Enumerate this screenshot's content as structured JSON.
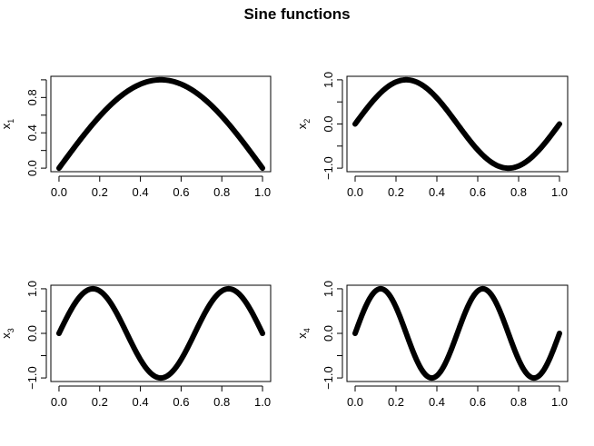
{
  "title": "Sine functions",
  "chart_data": [
    {
      "type": "line",
      "ylabel": "x",
      "ylabel_subscript": "1",
      "xlim": [
        0,
        1
      ],
      "ylim": [
        0,
        1
      ],
      "x_ticks": [
        "0.0",
        "0.2",
        "0.4",
        "0.6",
        "0.8",
        "1.0"
      ],
      "y_ticks": [
        "0.0",
        "0.4",
        "0.8"
      ],
      "y_tick_values": [
        0,
        0.4,
        0.8
      ],
      "function": "sin(0.5 * 2 * pi * x)",
      "series": [
        {
          "x": [
            0,
            0.1,
            0.2,
            0.3,
            0.4,
            0.5,
            0.6,
            0.7,
            0.8,
            0.9,
            1.0
          ],
          "y": [
            0,
            0.309,
            0.588,
            0.809,
            0.951,
            1.0,
            0.951,
            0.809,
            0.588,
            0.309,
            0
          ]
        }
      ],
      "frequency": 0.5,
      "line_color": "#000000",
      "grid": false
    },
    {
      "type": "line",
      "ylabel": "x",
      "ylabel_subscript": "2",
      "xlim": [
        0,
        1
      ],
      "ylim": [
        -1,
        1
      ],
      "x_ticks": [
        "0.0",
        "0.2",
        "0.4",
        "0.6",
        "0.8",
        "1.0"
      ],
      "y_ticks": [
        "−1.0",
        "0.0",
        "1.0"
      ],
      "y_tick_values": [
        -1,
        0,
        1
      ],
      "function": "sin(1 * 2 * pi * x)",
      "series": [
        {
          "x": [
            0,
            0.125,
            0.25,
            0.375,
            0.5,
            0.625,
            0.75,
            0.875,
            1.0
          ],
          "y": [
            0,
            0.707,
            1.0,
            0.707,
            0,
            -0.707,
            -1.0,
            -0.707,
            0
          ]
        }
      ],
      "frequency": 1,
      "line_color": "#000000",
      "grid": false
    },
    {
      "type": "line",
      "ylabel": "x",
      "ylabel_subscript": "3",
      "xlim": [
        0,
        1
      ],
      "ylim": [
        -1,
        1
      ],
      "x_ticks": [
        "0.0",
        "0.2",
        "0.4",
        "0.6",
        "0.8",
        "1.0"
      ],
      "y_ticks": [
        "−1.0",
        "0.0",
        "1.0"
      ],
      "y_tick_values": [
        -1,
        0,
        1
      ],
      "function": "sin(1.5 * 2 * pi * x)",
      "series": [
        {
          "x": [
            0,
            0.1667,
            0.3333,
            0.5,
            0.6667,
            0.8333,
            1.0
          ],
          "y": [
            0,
            1.0,
            0,
            -1.0,
            0,
            1.0,
            0
          ]
        }
      ],
      "frequency": 1.5,
      "line_color": "#000000",
      "grid": false
    },
    {
      "type": "line",
      "ylabel": "x",
      "ylabel_subscript": "4",
      "xlim": [
        0,
        1
      ],
      "ylim": [
        -1,
        1
      ],
      "x_ticks": [
        "0.0",
        "0.2",
        "0.4",
        "0.6",
        "0.8",
        "1.0"
      ],
      "y_ticks": [
        "−1.0",
        "0.0",
        "1.0"
      ],
      "y_tick_values": [
        -1,
        0,
        1
      ],
      "function": "sin(2 * 2 * pi * x)",
      "series": [
        {
          "x": [
            0,
            0.125,
            0.25,
            0.375,
            0.5,
            0.625,
            0.75,
            0.875,
            1.0
          ],
          "y": [
            0,
            1.0,
            0,
            -1.0,
            0,
            1.0,
            0,
            -1.0,
            0
          ]
        }
      ],
      "frequency": 2,
      "line_color": "#000000",
      "grid": false
    }
  ]
}
